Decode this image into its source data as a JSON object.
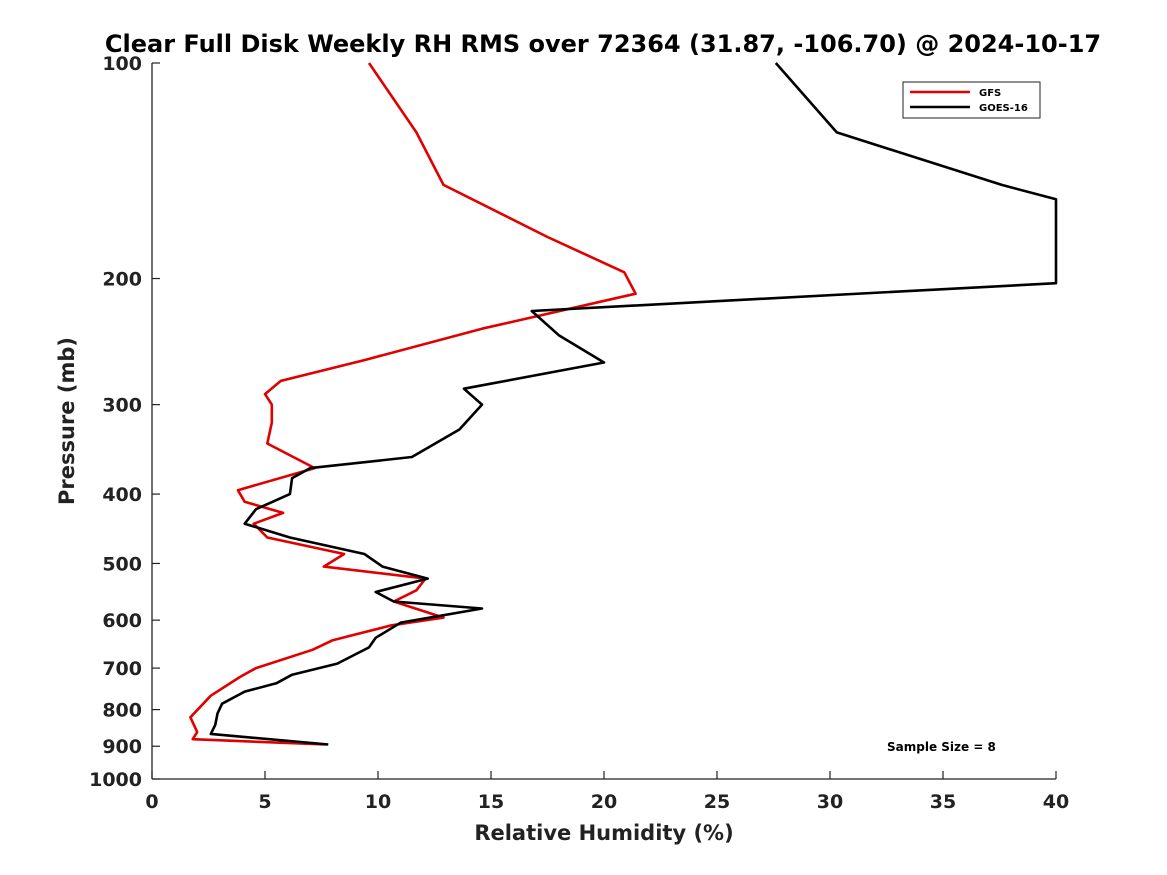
{
  "chart_data": {
    "type": "line",
    "title": "Clear Full Disk Weekly RH RMS over 72364 (31.87, -106.70) @ 2024-10-17",
    "xlabel": "Relative Humidity (%)",
    "ylabel": "Pressure (mb)",
    "xlim": [
      0,
      40
    ],
    "ylim": [
      100,
      1000
    ],
    "y_scale": "log",
    "y_reversed": true,
    "x_ticks": [
      0,
      5,
      10,
      15,
      20,
      25,
      30,
      35,
      40
    ],
    "y_ticks": [
      100,
      200,
      300,
      400,
      500,
      600,
      700,
      800,
      900,
      1000
    ],
    "grid": false,
    "legend_position": "top-right",
    "annotation": "Sample Size = 8",
    "series": [
      {
        "name": "GFS",
        "color": "#e00000",
        "points": [
          [
            9.6,
            100
          ],
          [
            11.7,
            125
          ],
          [
            12.9,
            148
          ],
          [
            17.5,
            175
          ],
          [
            20.9,
            196
          ],
          [
            21.4,
            210
          ],
          [
            14.6,
            235
          ],
          [
            9.4,
            260
          ],
          [
            5.7,
            278
          ],
          [
            5.0,
            290
          ],
          [
            5.3,
            300
          ],
          [
            5.3,
            318
          ],
          [
            5.1,
            340
          ],
          [
            7.2,
            368
          ],
          [
            3.8,
            395
          ],
          [
            4.1,
            410
          ],
          [
            5.8,
            425
          ],
          [
            4.5,
            440
          ],
          [
            5.1,
            460
          ],
          [
            8.5,
            485
          ],
          [
            7.6,
            505
          ],
          [
            12.1,
            525
          ],
          [
            11.7,
            545
          ],
          [
            10.7,
            565
          ],
          [
            12.9,
            595
          ],
          [
            10.6,
            610
          ],
          [
            8.0,
            640
          ],
          [
            7.1,
            660
          ],
          [
            4.6,
            700
          ],
          [
            3.9,
            720
          ],
          [
            2.6,
            765
          ],
          [
            1.7,
            820
          ],
          [
            2.0,
            860
          ],
          [
            1.8,
            880
          ],
          [
            7.7,
            895
          ]
        ]
      },
      {
        "name": "GOES-16",
        "color": "#000000",
        "points": [
          [
            27.6,
            100
          ],
          [
            30.3,
            125
          ],
          [
            37.6,
            148
          ],
          [
            40.0,
            155
          ],
          [
            40.0,
            203
          ],
          [
            16.8,
            222
          ],
          [
            18.0,
            240
          ],
          [
            20.0,
            262
          ],
          [
            13.8,
            285
          ],
          [
            14.6,
            300
          ],
          [
            13.6,
            325
          ],
          [
            11.5,
            355
          ],
          [
            7.0,
            368
          ],
          [
            6.2,
            380
          ],
          [
            6.1,
            400
          ],
          [
            4.6,
            420
          ],
          [
            4.1,
            440
          ],
          [
            6.1,
            460
          ],
          [
            9.4,
            485
          ],
          [
            10.2,
            505
          ],
          [
            12.2,
            525
          ],
          [
            9.9,
            548
          ],
          [
            10.7,
            565
          ],
          [
            14.6,
            578
          ],
          [
            11.0,
            605
          ],
          [
            9.9,
            635
          ],
          [
            9.6,
            655
          ],
          [
            8.2,
            690
          ],
          [
            6.2,
            715
          ],
          [
            5.5,
            735
          ],
          [
            4.1,
            755
          ],
          [
            3.1,
            785
          ],
          [
            2.9,
            810
          ],
          [
            2.8,
            840
          ],
          [
            2.6,
            865
          ],
          [
            7.8,
            895
          ]
        ]
      }
    ]
  }
}
